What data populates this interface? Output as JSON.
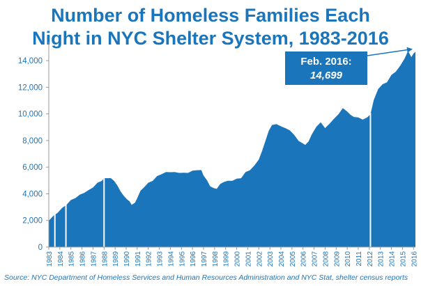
{
  "title_lines": [
    "Number of Homeless Families Each",
    "Night in NYC Shelter System, 1983-2016"
  ],
  "source": "Source:  NYC Department of Homeless Services and Human Resources Administration and NYC Stat,  shelter census reports",
  "colors": {
    "fill": "#1b75bb",
    "title": "#1b75bb",
    "axis_text": "#1b75bb",
    "callout": "#1b75bb",
    "callout_text": "#ffffff"
  },
  "annotation": {
    "line1": "Feb. 2016:",
    "line2": "14,699"
  },
  "chart_data": {
    "type": "area",
    "title": "Number of Homeless Families Each Night in NYC Shelter System, 1983-2016",
    "xlabel": "",
    "ylabel": "",
    "xlim": [
      1983,
      2016.17
    ],
    "ylim": [
      0,
      15000
    ],
    "yticks": [
      0,
      2000,
      4000,
      6000,
      8000,
      10000,
      12000,
      14000
    ],
    "ytick_labels": [
      "0",
      "2,000",
      "4,000",
      "6,000",
      "8,000",
      "10,000",
      "12,000",
      "14,000"
    ],
    "xtick_labels": [
      "1983",
      "1984",
      "1985",
      "1986",
      "1987",
      "1988",
      "1989",
      "1990",
      "1991",
      "1992",
      "1993",
      "1994",
      "1995",
      "1996",
      "1997",
      "1998",
      "1999",
      "2000",
      "2001",
      "2002",
      "2003",
      "2004",
      "2005",
      "2006",
      "2007",
      "2008",
      "2009",
      "2010",
      "2011",
      "2012",
      "2013",
      "2014",
      "2015",
      "2016"
    ],
    "grid": false,
    "x": [
      1983.0,
      1983.4,
      1983.8,
      1984.2,
      1984.6,
      1985.0,
      1985.4,
      1985.8,
      1986.2,
      1986.6,
      1987.0,
      1987.4,
      1987.8,
      1988.0,
      1988.3,
      1988.6,
      1988.9,
      1989.2,
      1989.5,
      1989.8,
      1990.1,
      1990.3,
      1990.5,
      1990.8,
      1991.0,
      1991.3,
      1991.6,
      1992.0,
      1992.4,
      1992.8,
      1993.2,
      1993.6,
      1994.0,
      1994.4,
      1994.8,
      1995.2,
      1995.6,
      1996.0,
      1996.4,
      1996.8,
      1997.0,
      1997.3,
      1997.6,
      1997.9,
      1998.2,
      1998.5,
      1998.8,
      1999.2,
      1999.6,
      2000.0,
      2000.4,
      2000.8,
      2001.2,
      2001.6,
      2002.0,
      2002.3,
      2002.6,
      2002.9,
      2003.2,
      2003.6,
      2004.0,
      2004.4,
      2004.8,
      2005.2,
      2005.6,
      2005.9,
      2006.2,
      2006.5,
      2006.8,
      2007.2,
      2007.6,
      2008.0,
      2008.4,
      2008.8,
      2009.2,
      2009.6,
      2010.0,
      2010.3,
      2010.6,
      2011.0,
      2011.4,
      2011.8,
      2012.1,
      2012.4,
      2012.8,
      2013.2,
      2013.6,
      2014.0,
      2014.4,
      2014.8,
      2015.2,
      2015.5,
      2015.8,
      2016.0,
      2016.17
    ],
    "values": [
      2000,
      2300,
      2600,
      2900,
      3200,
      3500,
      3700,
      3900,
      4100,
      4250,
      4500,
      4800,
      5000,
      5150,
      5200,
      5150,
      5000,
      4600,
      4200,
      3800,
      3600,
      3400,
      3200,
      3300,
      3700,
      4200,
      4500,
      4800,
      5000,
      5300,
      5500,
      5600,
      5650,
      5600,
      5600,
      5550,
      5600,
      5700,
      5800,
      5750,
      5400,
      5000,
      4600,
      4400,
      4400,
      4700,
      4900,
      4950,
      5000,
      5100,
      5200,
      5600,
      5800,
      6100,
      6600,
      7200,
      8000,
      8700,
      9200,
      9200,
      9100,
      8900,
      8800,
      8400,
      8000,
      7800,
      7700,
      7900,
      8500,
      9000,
      9400,
      8900,
      9300,
      9600,
      10000,
      10400,
      10200,
      9900,
      9800,
      9700,
      9600,
      9700,
      10000,
      11000,
      11900,
      12200,
      12400,
      12900,
      13200,
      13600,
      14200,
      14700,
      14300,
      14500,
      14699
    ]
  }
}
